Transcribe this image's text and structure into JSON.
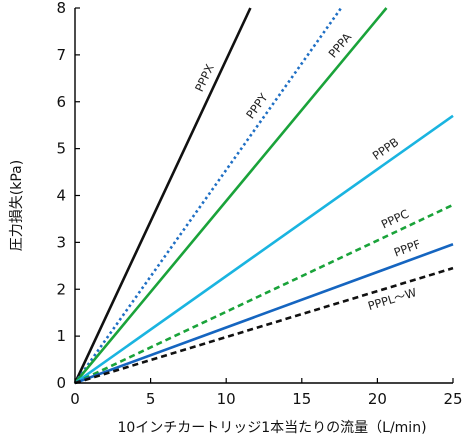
{
  "chart_data": {
    "type": "line",
    "xlabel": "10インチカートリッジ1本当たりの流量（L/min)",
    "ylabel": "圧力損失(kPa)",
    "xlim": [
      0,
      25
    ],
    "ylim": [
      0,
      8
    ],
    "xticks": [
      "0",
      "5",
      "10",
      "15",
      "20",
      "25"
    ],
    "yticks": [
      "0",
      "1",
      "2",
      "3",
      "4",
      "5",
      "6",
      "7",
      "8"
    ],
    "grid": false,
    "series": [
      {
        "name": "PPPX",
        "color": "#111111",
        "dash": "solid",
        "x": [
          0,
          11.6
        ],
        "y": [
          0,
          8
        ]
      },
      {
        "name": "PPPY",
        "color": "#1f6fc4",
        "dash": "dotted",
        "x": [
          0,
          17.6
        ],
        "y": [
          0,
          8
        ]
      },
      {
        "name": "PPPA",
        "color": "#1aa33a",
        "dash": "solid",
        "x": [
          0,
          20.6
        ],
        "y": [
          0,
          8
        ]
      },
      {
        "name": "PPPB",
        "color": "#1ab4e0",
        "dash": "solid",
        "x": [
          0,
          25
        ],
        "y": [
          0,
          5.7
        ]
      },
      {
        "name": "PPPC",
        "color": "#1aa33a",
        "dash": "dashed",
        "x": [
          0,
          25
        ],
        "y": [
          0,
          3.8
        ]
      },
      {
        "name": "PPPF",
        "color": "#1565c0",
        "dash": "solid",
        "x": [
          0,
          25
        ],
        "y": [
          0,
          2.96
        ]
      },
      {
        "name": "PPPL～W",
        "color": "#111111",
        "dash": "dashed",
        "x": [
          0,
          25
        ],
        "y": [
          0,
          2.45
        ]
      }
    ]
  }
}
